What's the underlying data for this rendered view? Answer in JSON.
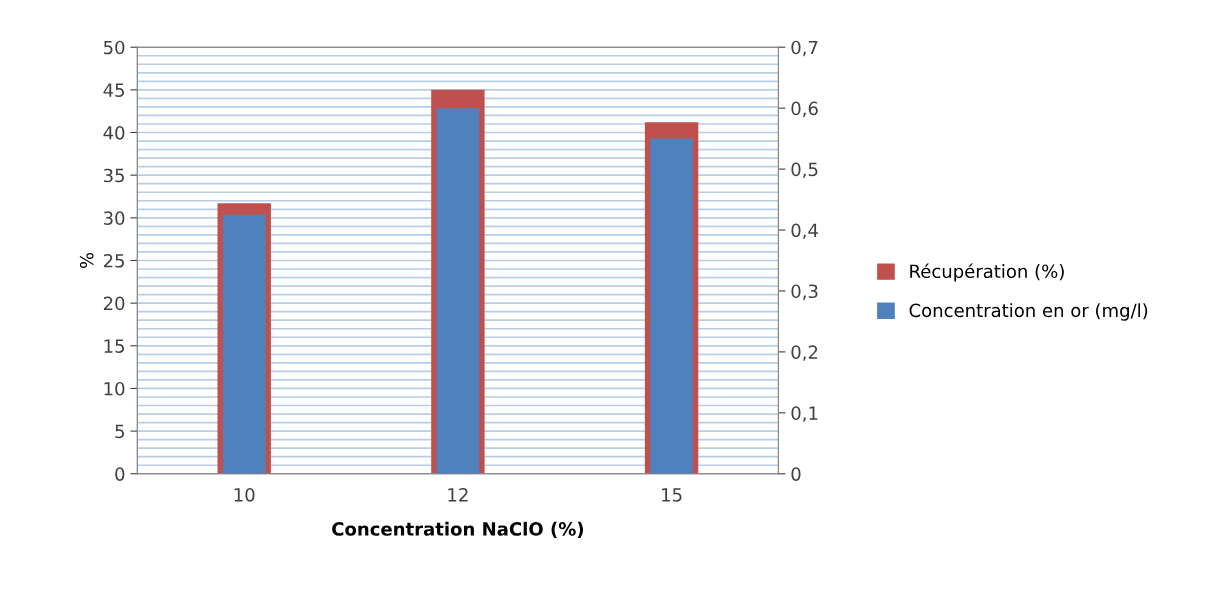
{
  "chart_data": {
    "type": "bar",
    "xlabel": "Concentration NaClO (%)",
    "ylabel": "%",
    "categories": [
      "10",
      "12",
      "15"
    ],
    "series": [
      {
        "name": "Récupération (%)",
        "color": "#c0504d",
        "values": [
          31.7,
          45.0,
          41.2
        ]
      },
      {
        "name": "Concentration en or (mg/l)",
        "color": "#4f81bd",
        "values": [
          0.425,
          0.6,
          0.55
        ],
        "axis": "y2"
      }
    ],
    "ylim": [
      0,
      50
    ],
    "yticks": [
      0,
      5,
      10,
      15,
      20,
      25,
      30,
      35,
      40,
      45,
      50
    ],
    "y2lim": [
      0,
      0.7
    ],
    "y2ticks": [
      {
        "value": 0,
        "label": "0"
      },
      {
        "value": 0.1,
        "label": "0,1"
      },
      {
        "value": 0.2,
        "label": "0,2"
      },
      {
        "value": 0.3,
        "label": "0,3"
      },
      {
        "value": 0.4,
        "label": "0,4"
      },
      {
        "value": 0.5,
        "label": "0,5"
      },
      {
        "value": 0.6,
        "label": "0,6"
      },
      {
        "value": 0.7,
        "label": "0,7"
      }
    ],
    "grid": true,
    "legend": "right"
  }
}
